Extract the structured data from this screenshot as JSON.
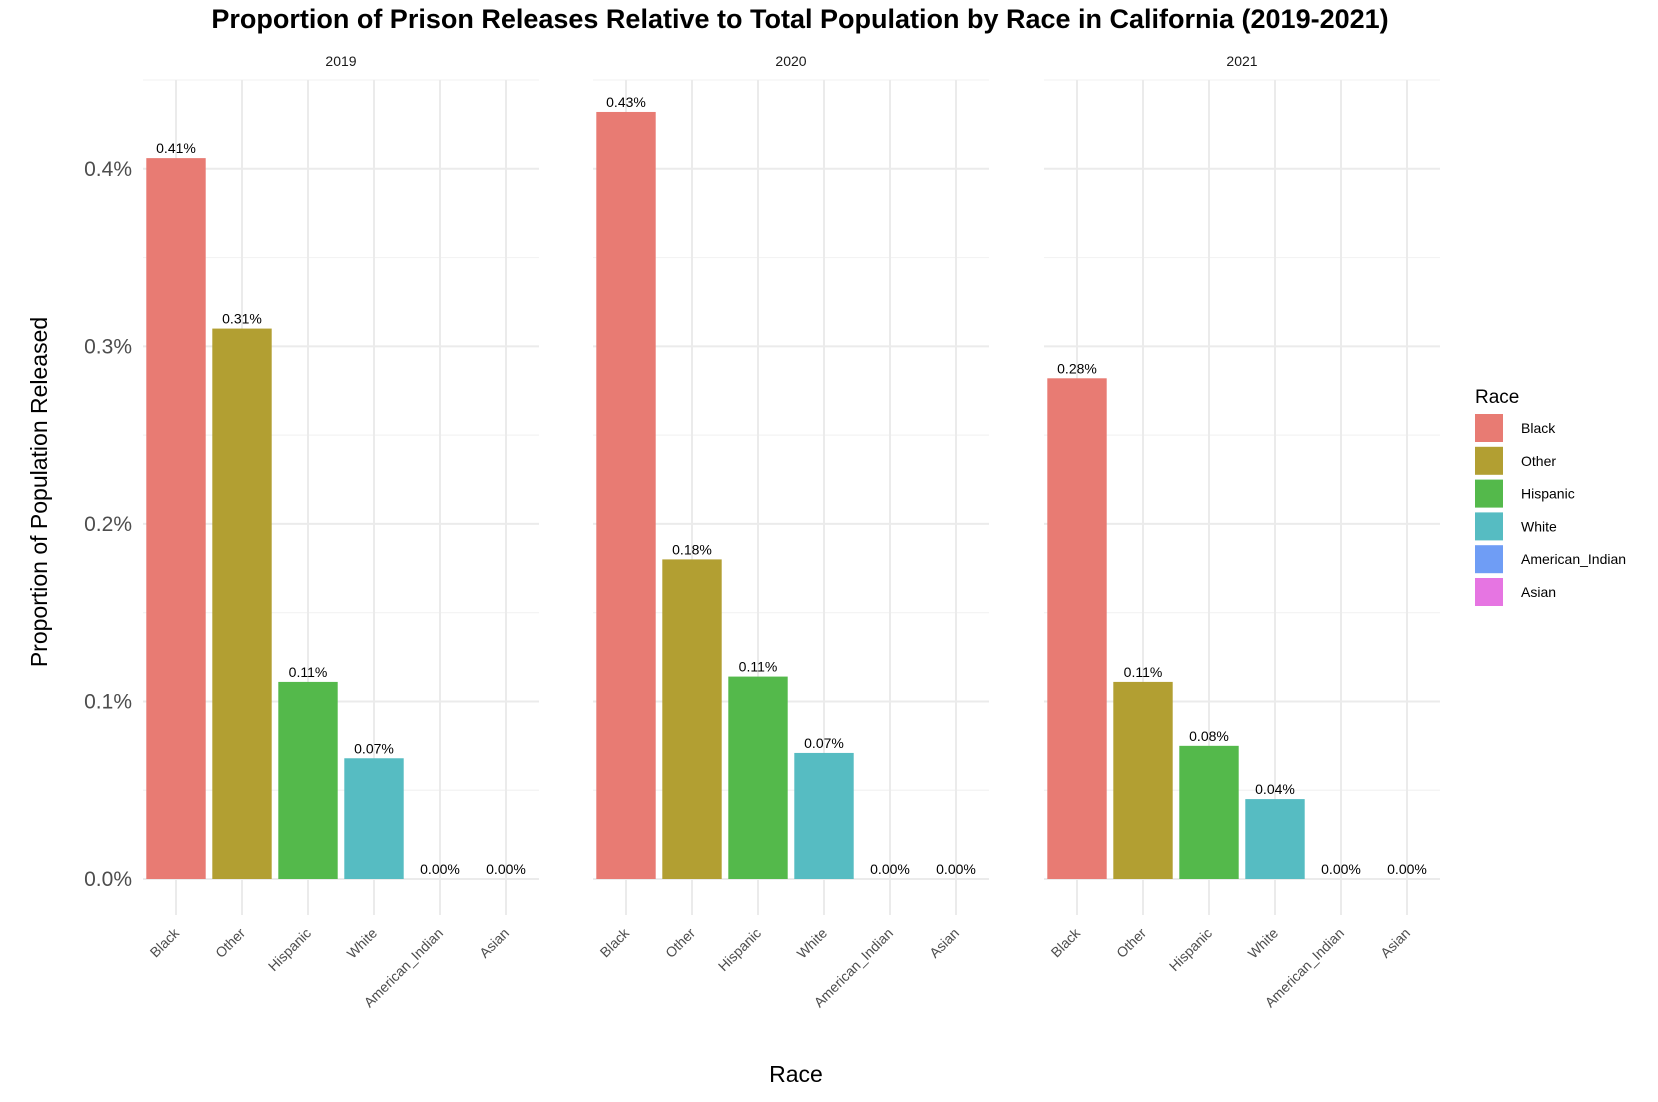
{
  "chart_data": {
    "type": "bar",
    "title": "Proportion of Prison Releases Relative to Total Population by Race in California (2019-2021)",
    "xlabel": "Race",
    "ylabel": "Proportion of Population Released",
    "categories": [
      "Black",
      "Other",
      "Hispanic",
      "White",
      "American_Indian",
      "Asian"
    ],
    "yticks": [
      "0.0%",
      "0.1%",
      "0.2%",
      "0.3%",
      "0.4%"
    ],
    "ytick_values": [
      0,
      0.1,
      0.2,
      0.3,
      0.4
    ],
    "ylim": [
      0,
      0.45
    ],
    "grid": true,
    "legend": {
      "title": "Race",
      "position": "right"
    },
    "colors": {
      "Black": "#E87B73",
      "Other": "#B29F32",
      "Hispanic": "#54B94B",
      "White": "#56BCC2",
      "American_Indian": "#6F9DF5",
      "Asian": "#E675E2"
    },
    "facets": [
      {
        "name": "2019",
        "values": [
          0.406,
          0.31,
          0.111,
          0.068,
          0.0,
          0.0
        ],
        "labels": [
          "0.41%",
          "0.31%",
          "0.11%",
          "0.07%",
          "0.00%",
          "0.00%"
        ]
      },
      {
        "name": "2020",
        "values": [
          0.432,
          0.18,
          0.114,
          0.071,
          0.0,
          0.0
        ],
        "labels": [
          "0.43%",
          "0.18%",
          "0.11%",
          "0.07%",
          "0.00%",
          "0.00%"
        ]
      },
      {
        "name": "2021",
        "values": [
          0.282,
          0.111,
          0.075,
          0.045,
          0.0,
          0.0
        ],
        "labels": [
          "0.28%",
          "0.11%",
          "0.08%",
          "0.04%",
          "0.00%",
          "0.00%"
        ]
      }
    ]
  }
}
